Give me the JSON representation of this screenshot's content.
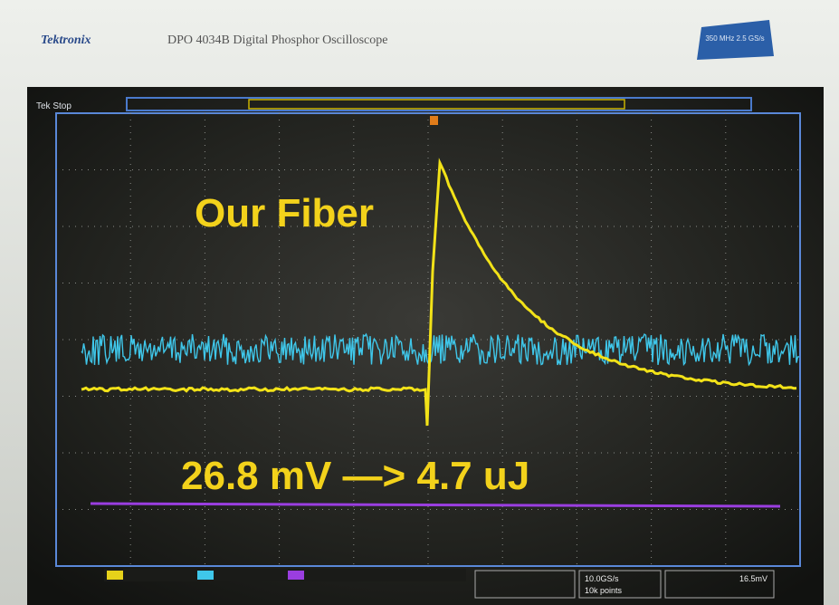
{
  "header": {
    "brand": "Tektronix",
    "model": "DPO 4034B Digital Phosphor Oscilloscope",
    "badge": "350 MHz 2.5 GS/s"
  },
  "screen": {
    "status": "Tek Stop",
    "readouts": {
      "sample_rate": "10.0GS/s",
      "record_length": "10k points",
      "trigger_level": "16.5mV"
    }
  },
  "annotations": {
    "title": "Our Fiber",
    "measurement": "26.8 mV —> 4.7 uJ"
  }
}
